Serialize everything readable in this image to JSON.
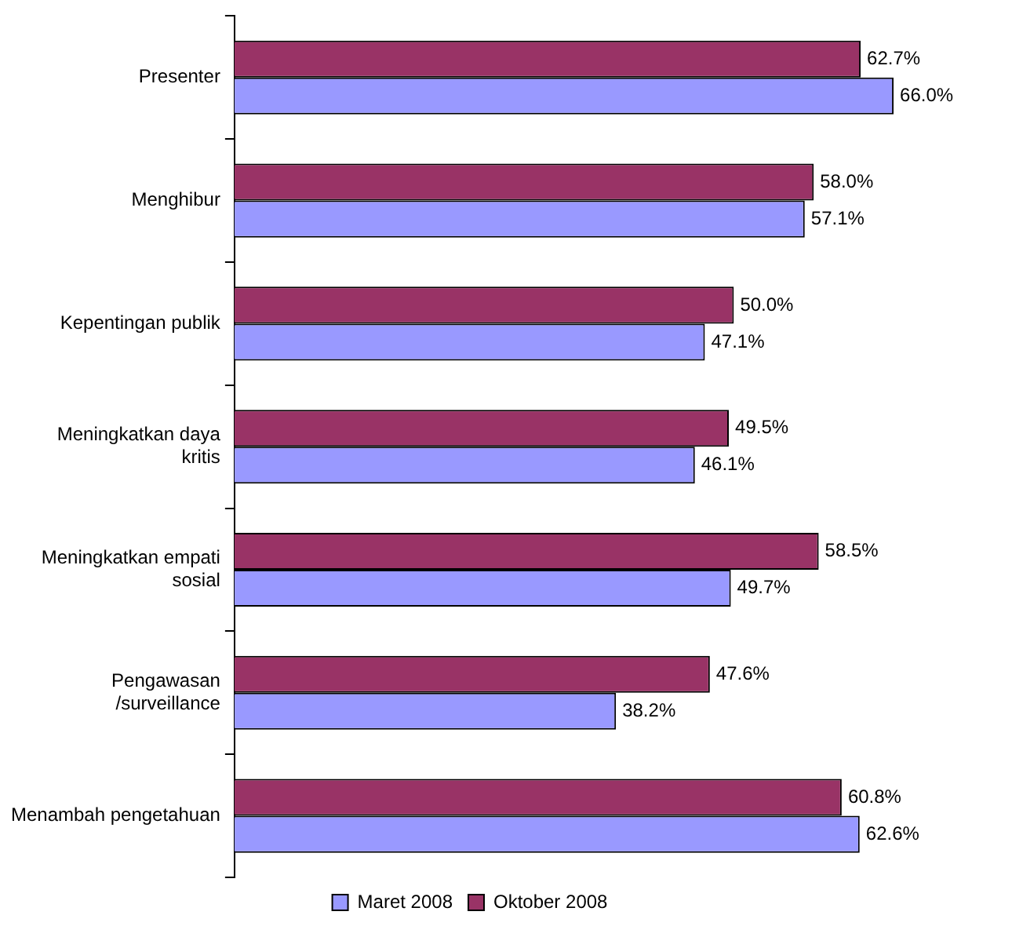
{
  "chart_data": {
    "type": "bar",
    "orientation": "horizontal",
    "categories": [
      "Presenter",
      "Menghibur",
      "Kepentingan publik",
      "Meningkatkan daya kritis",
      "Meningkatkan empati sosial",
      "Pengawasan /surveillance",
      "Menambah pengetahuan"
    ],
    "series": [
      {
        "name": "Maret 2008",
        "color": "#9999ff",
        "values": [
          66.0,
          57.1,
          47.1,
          46.1,
          49.7,
          38.2,
          62.6
        ],
        "value_labels": [
          "66.0%",
          "57.1%",
          "47.1%",
          "46.1%",
          "49.7%",
          "38.2%",
          "62.6%"
        ]
      },
      {
        "name": "Oktober 2008",
        "color": "#993366",
        "values": [
          62.7,
          58.0,
          50.0,
          49.5,
          58.5,
          47.6,
          60.8
        ],
        "value_labels": [
          "62.7%",
          "58.0%",
          "50.0%",
          "49.5%",
          "58.5%",
          "47.6%",
          "60.8%"
        ]
      }
    ],
    "legend": "bottom",
    "grid": false,
    "tick_labels": "y"
  }
}
